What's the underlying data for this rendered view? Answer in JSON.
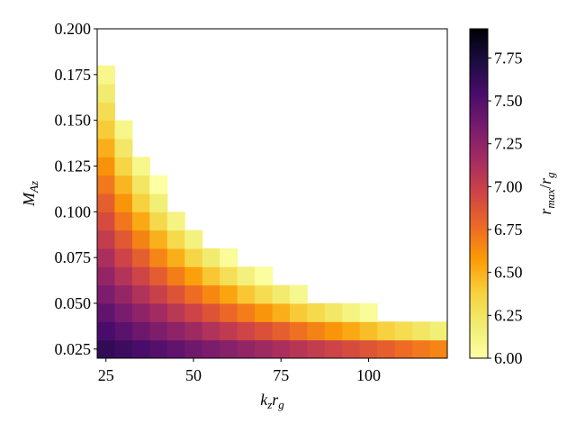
{
  "chart_data": {
    "type": "heatmap",
    "x": [
      25,
      30,
      35,
      40,
      45,
      50,
      55,
      60,
      65,
      70,
      75,
      80,
      85,
      90,
      95,
      100,
      105,
      110,
      115,
      120
    ],
    "y": [
      0.025,
      0.035,
      0.045,
      0.055,
      0.065,
      0.075,
      0.085,
      0.095,
      0.105,
      0.115,
      0.125,
      0.135,
      0.145,
      0.155,
      0.165,
      0.175,
      0.185,
      0.195
    ],
    "z": [
      [
        7.64,
        7.59,
        7.54,
        7.49,
        7.44,
        7.38,
        7.33,
        7.28,
        7.23,
        7.18,
        7.13,
        7.07,
        7.02,
        6.97,
        6.92,
        6.87,
        6.82,
        6.76,
        6.71,
        6.66
      ],
      [
        7.54,
        7.47,
        7.39,
        7.32,
        7.25,
        7.18,
        7.1,
        7.03,
        6.96,
        6.89,
        6.82,
        6.74,
        6.67,
        6.6,
        6.53,
        6.45,
        6.38,
        6.31,
        6.24,
        6.17
      ],
      [
        7.44,
        7.34,
        7.25,
        7.16,
        7.06,
        6.97,
        6.88,
        6.78,
        6.69,
        6.6,
        6.51,
        6.41,
        6.32,
        6.23,
        6.13,
        6.04,
        null,
        null,
        null,
        null
      ],
      [
        7.33,
        7.22,
        7.1,
        6.99,
        6.88,
        6.76,
        6.65,
        6.54,
        6.42,
        6.31,
        6.2,
        6.08,
        null,
        null,
        null,
        null,
        null,
        null,
        null,
        null
      ],
      [
        7.23,
        7.09,
        6.96,
        6.83,
        6.69,
        6.56,
        6.42,
        6.29,
        6.15,
        6.02,
        null,
        null,
        null,
        null,
        null,
        null,
        null,
        null,
        null,
        null
      ],
      [
        7.13,
        6.97,
        6.82,
        6.66,
        6.51,
        6.35,
        6.2,
        6.04,
        null,
        null,
        null,
        null,
        null,
        null,
        null,
        null,
        null,
        null,
        null,
        null
      ],
      [
        7.02,
        6.85,
        6.67,
        6.5,
        6.32,
        6.14,
        null,
        null,
        null,
        null,
        null,
        null,
        null,
        null,
        null,
        null,
        null,
        null,
        null,
        null
      ],
      [
        6.92,
        6.72,
        6.53,
        6.33,
        6.13,
        null,
        null,
        null,
        null,
        null,
        null,
        null,
        null,
        null,
        null,
        null,
        null,
        null,
        null,
        null
      ],
      [
        6.82,
        6.6,
        6.38,
        6.17,
        null,
        null,
        null,
        null,
        null,
        null,
        null,
        null,
        null,
        null,
        null,
        null,
        null,
        null,
        null,
        null
      ],
      [
        6.71,
        6.48,
        6.24,
        6.0,
        null,
        null,
        null,
        null,
        null,
        null,
        null,
        null,
        null,
        null,
        null,
        null,
        null,
        null,
        null,
        null
      ],
      [
        6.61,
        6.35,
        6.09,
        null,
        null,
        null,
        null,
        null,
        null,
        null,
        null,
        null,
        null,
        null,
        null,
        null,
        null,
        null,
        null,
        null
      ],
      [
        6.51,
        6.23,
        null,
        null,
        null,
        null,
        null,
        null,
        null,
        null,
        null,
        null,
        null,
        null,
        null,
        null,
        null,
        null,
        null,
        null
      ],
      [
        6.4,
        6.1,
        null,
        null,
        null,
        null,
        null,
        null,
        null,
        null,
        null,
        null,
        null,
        null,
        null,
        null,
        null,
        null,
        null,
        null
      ],
      [
        6.3,
        null,
        null,
        null,
        null,
        null,
        null,
        null,
        null,
        null,
        null,
        null,
        null,
        null,
        null,
        null,
        null,
        null,
        null,
        null
      ],
      [
        6.2,
        null,
        null,
        null,
        null,
        null,
        null,
        null,
        null,
        null,
        null,
        null,
        null,
        null,
        null,
        null,
        null,
        null,
        null,
        null
      ],
      [
        6.09,
        null,
        null,
        null,
        null,
        null,
        null,
        null,
        null,
        null,
        null,
        null,
        null,
        null,
        null,
        null,
        null,
        null,
        null,
        null
      ],
      [
        null,
        null,
        null,
        null,
        null,
        null,
        null,
        null,
        null,
        null,
        null,
        null,
        null,
        null,
        null,
        null,
        null,
        null,
        null,
        null
      ],
      [
        null,
        null,
        null,
        null,
        null,
        null,
        null,
        null,
        null,
        null,
        null,
        null,
        null,
        null,
        null,
        null,
        null,
        null,
        null,
        null
      ]
    ],
    "xlim": [
      22.5,
      122.5
    ],
    "ylim": [
      0.02,
      0.2
    ],
    "xticks": [
      25,
      50,
      75,
      100
    ],
    "yticks": [
      0.025,
      {
        "value": 0.05,
        "label": "0.050"
      },
      0.075,
      {
        "value": 0.1,
        "label": "0.100"
      },
      0.125,
      {
        "value": 0.15,
        "label": "0.150"
      },
      0.175,
      {
        "value": 0.2,
        "label": "0.200"
      }
    ],
    "xlabel": [
      {
        "base": "k",
        "sub": "z"
      },
      {
        "base": "r",
        "sub": "g"
      }
    ],
    "ylabel": [
      {
        "base": "M",
        "sub": "Az"
      }
    ],
    "colormap": "inferno_r",
    "colorbar": {
      "clim": [
        6,
        7.92
      ],
      "ticks": [
        {
          "value": 6,
          "label": "6.00"
        },
        6.25,
        {
          "value": 6.5,
          "label": "6.50"
        },
        6.75,
        {
          "value": 7,
          "label": "7.00"
        },
        7.25,
        {
          "value": 7.5,
          "label": "7.50"
        },
        7.75
      ],
      "label": [
        {
          "base": "r",
          "sub": "max"
        },
        {
          "base": "/"
        },
        {
          "base": "r",
          "sub": "g"
        }
      ]
    }
  }
}
